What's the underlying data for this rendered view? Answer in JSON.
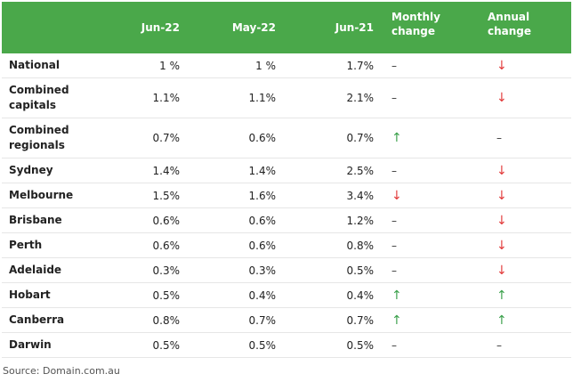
{
  "header": {
    "col_region": "",
    "col_jun22": "Jun-22",
    "col_may22": "May-22",
    "col_jun21": "Jun-21",
    "col_monthly_line1": "Monthly",
    "col_monthly_line2": "change",
    "col_annual_line1": "Annual",
    "col_annual_line2": "change"
  },
  "symbols": {
    "down": "↓",
    "up": "↑",
    "dash": "–"
  },
  "rows": [
    {
      "name": "National",
      "jun22": "1   %",
      "may22": "1   %",
      "jun21": "1.7%",
      "monthly": "dash",
      "annual": "down"
    },
    {
      "name": "Combined capitals",
      "jun22": "1.1%",
      "may22": "1.1%",
      "jun21": "2.1%",
      "monthly": "dash",
      "annual": "down"
    },
    {
      "name": "Combined regionals",
      "jun22": "0.7%",
      "may22": "0.6%",
      "jun21": "0.7%",
      "monthly": "up",
      "annual": "dash"
    },
    {
      "name": "Sydney",
      "jun22": "1.4%",
      "may22": "1.4%",
      "jun21": "2.5%",
      "monthly": "dash",
      "annual": "down"
    },
    {
      "name": "Melbourne",
      "jun22": "1.5%",
      "may22": "1.6%",
      "jun21": "3.4%",
      "monthly": "down",
      "annual": "down"
    },
    {
      "name": "Brisbane",
      "jun22": "0.6%",
      "may22": "0.6%",
      "jun21": "1.2%",
      "monthly": "dash",
      "annual": "down"
    },
    {
      "name": "Perth",
      "jun22": "0.6%",
      "may22": "0.6%",
      "jun21": "0.8%",
      "monthly": "dash",
      "annual": "down"
    },
    {
      "name": "Adelaide",
      "jun22": "0.3%",
      "may22": "0.3%",
      "jun21": "0.5%",
      "monthly": "dash",
      "annual": "down"
    },
    {
      "name": "Hobart",
      "jun22": "0.5%",
      "may22": "0.4%",
      "jun21": "0.4%",
      "monthly": "up",
      "annual": "up"
    },
    {
      "name": "Canberra",
      "jun22": "0.8%",
      "may22": "0.7%",
      "jun21": "0.7%",
      "monthly": "up",
      "annual": "up"
    },
    {
      "name": "Darwin",
      "jun22": "0.5%",
      "may22": "0.5%",
      "jun21": "0.5%",
      "monthly": "dash",
      "annual": "dash"
    }
  ],
  "source": "Source: Domain.com.au",
  "colors": {
    "header_bg": "#4aa84a",
    "header_text": "#ffffff",
    "down_arrow": "#e23a3a",
    "up_arrow": "#3aa04a"
  }
}
